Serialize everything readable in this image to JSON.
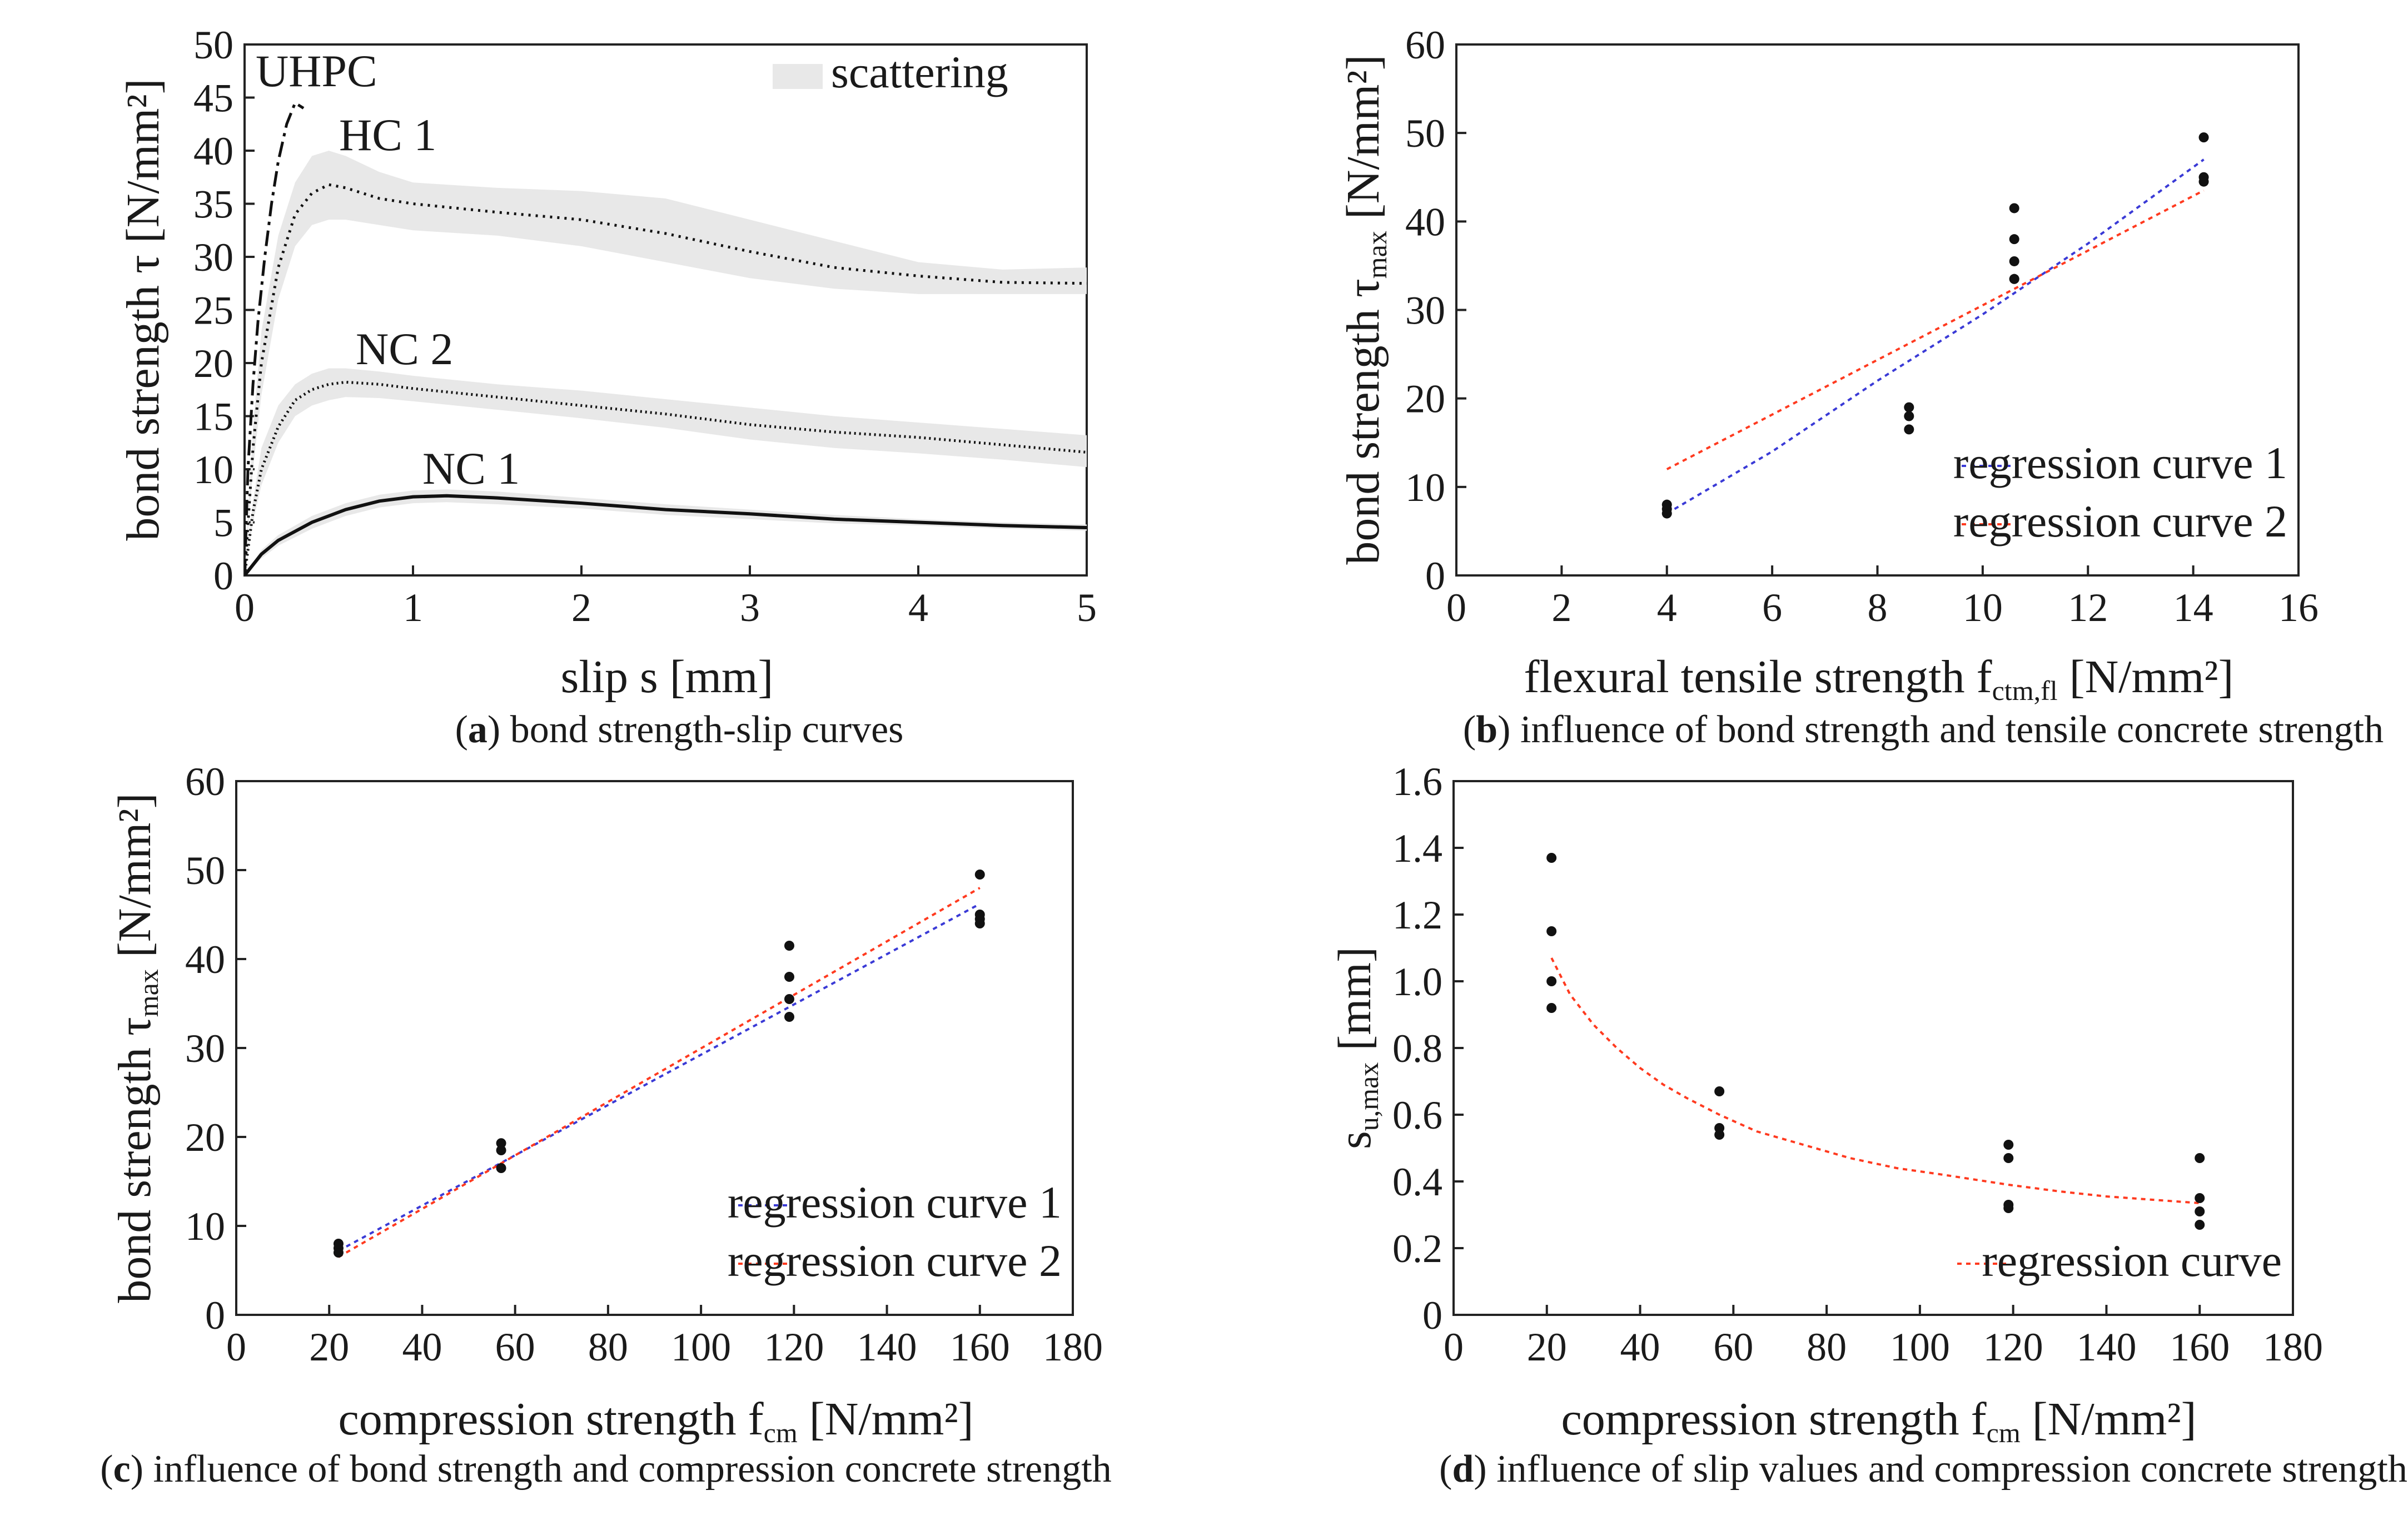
{
  "chart_data": [
    {
      "id": "a",
      "type": "line",
      "caption_letter": "a",
      "caption_text": ") bond strength-slip curves",
      "xlabel": "slip s [mm]",
      "ylabel": "bond strength τ [N/mm²]",
      "xlim": [
        0,
        5
      ],
      "ylim": [
        0,
        50
      ],
      "xticks": [
        "0",
        "1",
        "2",
        "3",
        "4",
        "5"
      ],
      "yticks": [
        "0",
        "5",
        "10",
        "15",
        "20",
        "25",
        "30",
        "35",
        "40",
        "45",
        "50"
      ],
      "legend": {
        "label": "scattering",
        "position": "top-right"
      },
      "series": [
        {
          "name": "UHPC",
          "style": "dashdot",
          "x": [
            0,
            0.02,
            0.05,
            0.08,
            0.12,
            0.16,
            0.2,
            0.25,
            0.3,
            0.35
          ],
          "y": [
            0,
            10,
            18,
            24,
            30,
            35,
            39,
            42.5,
            44.5,
            44
          ]
        },
        {
          "name": "HC 1",
          "style": "dotted",
          "x": [
            0,
            0.05,
            0.1,
            0.2,
            0.3,
            0.4,
            0.5,
            0.6,
            0.8,
            1.0,
            1.5,
            2.0,
            2.5,
            3.0,
            3.5,
            4.0,
            4.5,
            5.0
          ],
          "y": [
            0,
            12,
            20,
            29,
            34,
            36,
            36.8,
            36.5,
            35.5,
            35,
            34.2,
            33.5,
            32.2,
            30.5,
            29,
            28.2,
            27.6,
            27.5
          ],
          "band_upper": [
            0,
            14,
            23,
            32,
            37,
            39.5,
            40,
            39.5,
            38,
            37,
            36.5,
            36.2,
            35.5,
            33.5,
            31.5,
            29.5,
            28.8,
            29
          ],
          "band_lower": [
            0,
            10,
            17,
            26,
            31,
            33,
            33.5,
            33.5,
            33,
            32.5,
            32,
            31,
            29.5,
            28,
            27,
            26.5,
            26.5,
            26.5
          ]
        },
        {
          "name": "NC 2",
          "style": "dotted-fine",
          "x": [
            0,
            0.05,
            0.1,
            0.2,
            0.3,
            0.4,
            0.5,
            0.6,
            0.8,
            1.0,
            1.5,
            2.0,
            2.5,
            3.0,
            3.5,
            4.0,
            4.5,
            5.0
          ],
          "y": [
            0,
            6,
            10,
            14,
            16.5,
            17.5,
            18,
            18.2,
            18,
            17.6,
            16.8,
            16,
            15.2,
            14.2,
            13.5,
            13,
            12.3,
            11.6
          ],
          "band_upper": [
            0,
            7,
            12,
            16,
            18,
            19,
            19.5,
            19.5,
            19.2,
            18.8,
            18,
            17.4,
            16.6,
            15.8,
            15,
            14.4,
            13.8,
            13.2
          ],
          "band_lower": [
            0,
            5,
            8.5,
            12.5,
            15,
            16,
            16.5,
            16.8,
            16.7,
            16.4,
            15.6,
            14.8,
            13.9,
            12.8,
            12,
            11.5,
            10.9,
            10.2
          ]
        },
        {
          "name": "NC 1",
          "style": "solid",
          "x": [
            0,
            0.1,
            0.2,
            0.4,
            0.6,
            0.8,
            1.0,
            1.2,
            1.5,
            2.0,
            2.5,
            3.0,
            3.5,
            4.0,
            4.5,
            5.0
          ],
          "y": [
            0,
            2,
            3.3,
            5,
            6.2,
            7,
            7.4,
            7.5,
            7.3,
            6.8,
            6.2,
            5.8,
            5.3,
            5,
            4.7,
            4.5
          ],
          "band_upper": [
            0,
            2.4,
            3.8,
            5.6,
            6.8,
            7.6,
            8,
            8.1,
            7.9,
            7.3,
            6.7,
            6.2,
            5.7,
            5.3,
            5,
            4.8
          ],
          "band_lower": [
            0,
            1.6,
            2.8,
            4.4,
            5.6,
            6.4,
            6.8,
            6.9,
            6.7,
            6.3,
            5.7,
            5.3,
            4.9,
            4.7,
            4.4,
            4.2
          ]
        }
      ]
    },
    {
      "id": "b",
      "type": "scatter",
      "caption_letter": "b",
      "caption_text": ") influence of bond strength and tensile concrete strength",
      "xlabel_main": "flexural tensile strength f",
      "xlabel_sub": "ctm,fl",
      "xlabel_tail": " [N/mm²]",
      "ylabel_main": "bond strength τ",
      "ylabel_sub": "max",
      "ylabel_tail": " [N/mm²]",
      "xlim": [
        0,
        16
      ],
      "ylim": [
        0,
        60
      ],
      "xticks": [
        "0",
        "2",
        "4",
        "6",
        "8",
        "10",
        "12",
        "14",
        "16"
      ],
      "yticks": [
        "0",
        "10",
        "20",
        "30",
        "40",
        "50",
        "60"
      ],
      "points": {
        "x": [
          4,
          4,
          4,
          8.6,
          8.6,
          8.6,
          10.6,
          10.6,
          10.6,
          10.6,
          10.6,
          14.2,
          14.2,
          14.2
        ],
        "y": [
          7,
          7.5,
          8,
          16.5,
          18,
          19,
          33.5,
          35.5,
          38,
          41.5,
          33.5,
          44.5,
          45,
          49.5
        ]
      },
      "series": [
        {
          "name": "regression curve 1",
          "color": "#3a3ad6",
          "x": [
            4,
            6,
            8,
            10,
            12,
            14.2
          ],
          "y": [
            7,
            14,
            22,
            29.5,
            37.5,
            47
          ]
        },
        {
          "name": "regression curve 2",
          "color": "#ff3a1f",
          "x": [
            4,
            14.2
          ],
          "y": [
            12,
            43.5
          ]
        }
      ]
    },
    {
      "id": "c",
      "type": "scatter",
      "caption_letter": "c",
      "caption_text": ") influence of bond strength and compression concrete strength",
      "xlabel_main": "compression strength f",
      "xlabel_sub": "cm",
      "xlabel_tail": " [N/mm²]",
      "ylabel_main": "bond strength τ",
      "ylabel_sub": "max",
      "ylabel_tail": " [N/mm²]",
      "xlim": [
        0,
        180
      ],
      "ylim": [
        0,
        60
      ],
      "xticks": [
        "0",
        "20",
        "40",
        "60",
        "80",
        "100",
        "120",
        "140",
        "160",
        "180"
      ],
      "yticks": [
        "0",
        "10",
        "20",
        "30",
        "40",
        "50",
        "60"
      ],
      "points": {
        "x": [
          22,
          22,
          22,
          57,
          57,
          57,
          119,
          119,
          119,
          119,
          160,
          160,
          160,
          160
        ],
        "y": [
          7,
          7.5,
          8,
          16.5,
          18.5,
          19.3,
          33.5,
          35.5,
          38,
          41.5,
          44,
          44.5,
          45,
          49.5
        ]
      },
      "series": [
        {
          "name": "regression curve 1",
          "color": "#3a3ad6",
          "x": [
            22,
            160
          ],
          "y": [
            7.2,
            46.2
          ]
        },
        {
          "name": "regression curve 2",
          "color": "#ff3a1f",
          "x": [
            22,
            160
          ],
          "y": [
            6.5,
            48
          ]
        }
      ]
    },
    {
      "id": "d",
      "type": "scatter",
      "caption_letter": "d",
      "caption_text": ") influence of slip values and compression concrete strength",
      "xlabel_main": "compression strength f",
      "xlabel_sub": "cm",
      "xlabel_tail": " [N/mm²]",
      "ylabel_main": "s",
      "ylabel_sub": "u,max",
      "ylabel_tail": " [mm]",
      "xlim": [
        0,
        180
      ],
      "ylim": [
        0,
        1.6
      ],
      "xticks": [
        "0",
        "20",
        "40",
        "60",
        "80",
        "100",
        "120",
        "140",
        "160",
        "180"
      ],
      "yticks": [
        "0",
        "0.2",
        "0.4",
        "0.6",
        "0.8",
        "1.0",
        "1.2",
        "1.4",
        "1.6"
      ],
      "points": {
        "x": [
          21,
          21,
          21,
          21,
          57,
          57,
          57,
          119,
          119,
          119,
          119,
          160,
          160,
          160,
          160
        ],
        "y": [
          0.92,
          1.0,
          1.15,
          1.37,
          0.54,
          0.56,
          0.67,
          0.32,
          0.33,
          0.47,
          0.51,
          0.27,
          0.31,
          0.35,
          0.47
        ]
      },
      "series": [
        {
          "name": "regression curve",
          "color": "#ff3a1f",
          "x": [
            21,
            25,
            30,
            35,
            40,
            45,
            50,
            57,
            65,
            75,
            85,
            95,
            105,
            119,
            130,
            140,
            150,
            160
          ],
          "y": [
            1.07,
            0.96,
            0.87,
            0.8,
            0.74,
            0.69,
            0.65,
            0.6,
            0.55,
            0.51,
            0.47,
            0.44,
            0.42,
            0.39,
            0.37,
            0.355,
            0.345,
            0.335
          ]
        }
      ]
    }
  ]
}
